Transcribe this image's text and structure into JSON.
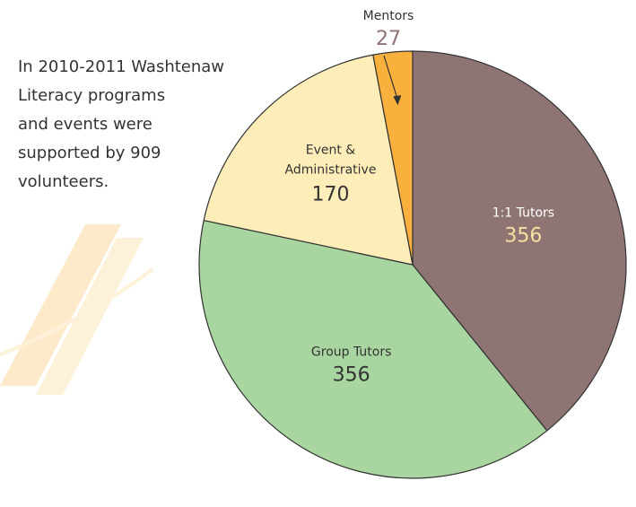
{
  "chart_data": {
    "type": "pie",
    "annotation_lines": [
      "In 2010-2011 Washtenaw",
      "Literacy programs",
      "and events were",
      "supported by 909",
      "volunteers."
    ],
    "categories": [
      "1:1 Tutors",
      "Group Tutors",
      "Event & Administrative",
      "Mentors"
    ],
    "values": [
      356,
      356,
      170,
      27
    ],
    "colors": [
      "#8f7474",
      "#a8d5a0",
      "#fdedb8",
      "#f9b03c"
    ]
  }
}
